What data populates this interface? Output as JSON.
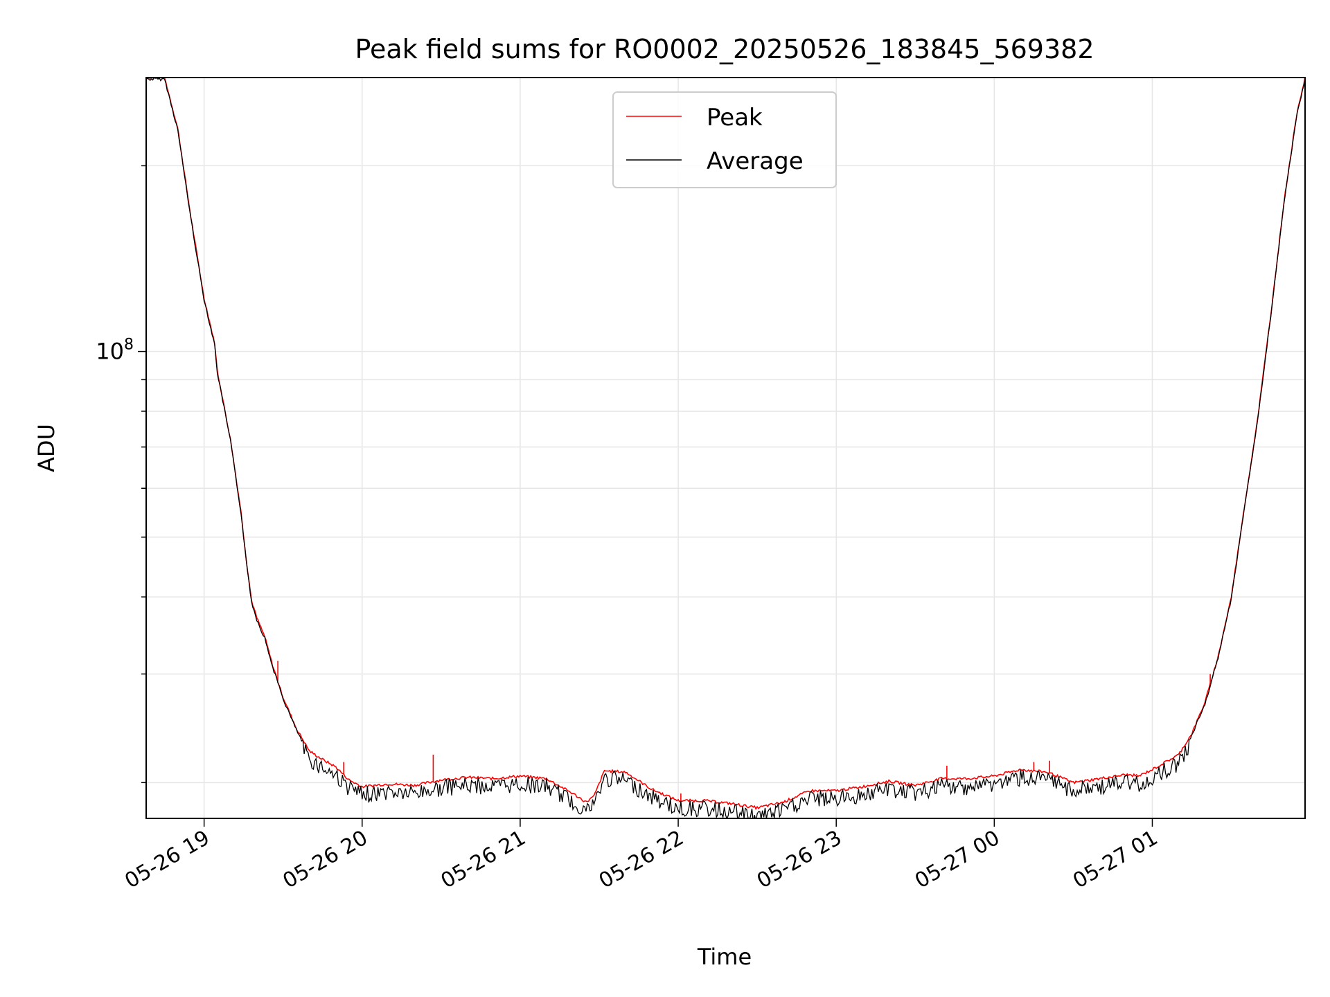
{
  "chart_data": {
    "type": "line",
    "title": "Peak field sums for RO0002_20250526_183845_569382",
    "xlabel": "Time",
    "ylabel": "ADU",
    "yscale": "log",
    "grid": true,
    "legend_position": "top-center",
    "x_ticks": [
      "05-26 19",
      "05-26 20",
      "05-26 21",
      "05-26 22",
      "05-26 23",
      "05-27 00",
      "05-27 01"
    ],
    "y_major_tick": {
      "base": "10",
      "exponent": "8",
      "value": 100000000
    },
    "xlim": [
      "2025-05-26 18:38",
      "2025-05-27 01:58"
    ],
    "ylim": [
      17500000,
      278000000
    ],
    "series": [
      {
        "name": "Peak",
        "color": "#ff0000",
        "points": [
          [
            "2025-05-26 18:38",
            278000000
          ],
          [
            "2025-05-26 18:45",
            278000000
          ],
          [
            "2025-05-26 18:50",
            230000000
          ],
          [
            "2025-05-26 18:55",
            165000000
          ],
          [
            "2025-05-26 19:00",
            122000000
          ],
          [
            "2025-05-26 19:04",
            103000000
          ],
          [
            "2025-05-26 19:05",
            93000000
          ],
          [
            "2025-05-26 19:10",
            72000000
          ],
          [
            "2025-05-26 19:14",
            55000000
          ],
          [
            "2025-05-26 19:16",
            46000000
          ],
          [
            "2025-05-26 19:18",
            39500000
          ],
          [
            "2025-05-26 19:20",
            37000000
          ],
          [
            "2025-05-26 19:23",
            34500000
          ],
          [
            "2025-05-26 19:26",
            31000000
          ],
          [
            "2025-05-26 19:30",
            27500000
          ],
          [
            "2025-05-26 19:35",
            24500000
          ],
          [
            "2025-05-26 19:40",
            22500000
          ],
          [
            "2025-05-26 19:45",
            21800000
          ],
          [
            "2025-05-26 19:50",
            21200000
          ],
          [
            "2025-05-26 19:55",
            20200000
          ],
          [
            "2025-05-26 20:00",
            19700000
          ],
          [
            "2025-05-26 20:10",
            19900000
          ],
          [
            "2025-05-26 20:20",
            19800000
          ],
          [
            "2025-05-26 20:30",
            20200000
          ],
          [
            "2025-05-26 20:40",
            20400000
          ],
          [
            "2025-05-26 20:50",
            20300000
          ],
          [
            "2025-05-26 21:00",
            20500000
          ],
          [
            "2025-05-26 21:10",
            20300000
          ],
          [
            "2025-05-26 21:20",
            19200000
          ],
          [
            "2025-05-26 21:25",
            18600000
          ],
          [
            "2025-05-26 21:28",
            19000000
          ],
          [
            "2025-05-26 21:32",
            20900000
          ],
          [
            "2025-05-26 21:40",
            20800000
          ],
          [
            "2025-05-26 21:50",
            19500000
          ],
          [
            "2025-05-26 22:00",
            18700000
          ],
          [
            "2025-05-26 22:10",
            18700000
          ],
          [
            "2025-05-26 22:20",
            18500000
          ],
          [
            "2025-05-26 22:30",
            18200000
          ],
          [
            "2025-05-26 22:40",
            18600000
          ],
          [
            "2025-05-26 22:50",
            19400000
          ],
          [
            "2025-05-26 23:00",
            19400000
          ],
          [
            "2025-05-26 23:10",
            19700000
          ],
          [
            "2025-05-26 23:20",
            20100000
          ],
          [
            "2025-05-26 23:30",
            19800000
          ],
          [
            "2025-05-26 23:40",
            20300000
          ],
          [
            "2025-05-26 23:50",
            20300000
          ],
          [
            "2025-05-27 00:00",
            20500000
          ],
          [
            "2025-05-27 00:10",
            21000000
          ],
          [
            "2025-05-27 00:20",
            20800000
          ],
          [
            "2025-05-27 00:30",
            20000000
          ],
          [
            "2025-05-27 00:40",
            20300000
          ],
          [
            "2025-05-27 00:50",
            20600000
          ],
          [
            "2025-05-27 00:55",
            20500000
          ],
          [
            "2025-05-27 01:00",
            21000000
          ],
          [
            "2025-05-27 01:10",
            22200000
          ],
          [
            "2025-05-27 01:15",
            24000000
          ],
          [
            "2025-05-27 01:20",
            27000000
          ],
          [
            "2025-05-27 01:25",
            32000000
          ],
          [
            "2025-05-27 01:30",
            40000000
          ],
          [
            "2025-05-27 01:35",
            56000000
          ],
          [
            "2025-05-27 01:40",
            78000000
          ],
          [
            "2025-05-27 01:45",
            115000000
          ],
          [
            "2025-05-27 01:50",
            175000000
          ],
          [
            "2025-05-27 01:55",
            245000000
          ],
          [
            "2025-05-27 01:58",
            278000000
          ]
        ],
        "spikes": [
          [
            "2025-05-26 19:28",
            31500000
          ],
          [
            "2025-05-26 19:33",
            25500000
          ],
          [
            "2025-05-26 19:53",
            21600000
          ],
          [
            "2025-05-26 20:27",
            22200000
          ],
          [
            "2025-05-26 22:01",
            19200000
          ],
          [
            "2025-05-26 23:42",
            21300000
          ],
          [
            "2025-05-27 00:15",
            21600000
          ],
          [
            "2025-05-27 00:21",
            21700000
          ],
          [
            "2025-05-27 01:22",
            30000000
          ]
        ]
      },
      {
        "name": "Average",
        "color": "#000000",
        "points_note": "same curve as Peak with downward noise",
        "dips": [
          [
            "2025-05-26 20:00",
            18800000
          ],
          [
            "2025-05-26 20:05",
            19000000
          ],
          [
            "2025-05-26 21:20",
            18100000
          ],
          [
            "2025-05-26 22:25",
            17500000
          ],
          [
            "2025-05-26 22:30",
            17800000
          ],
          [
            "2025-05-26 23:45",
            19200000
          ]
        ]
      }
    ]
  }
}
